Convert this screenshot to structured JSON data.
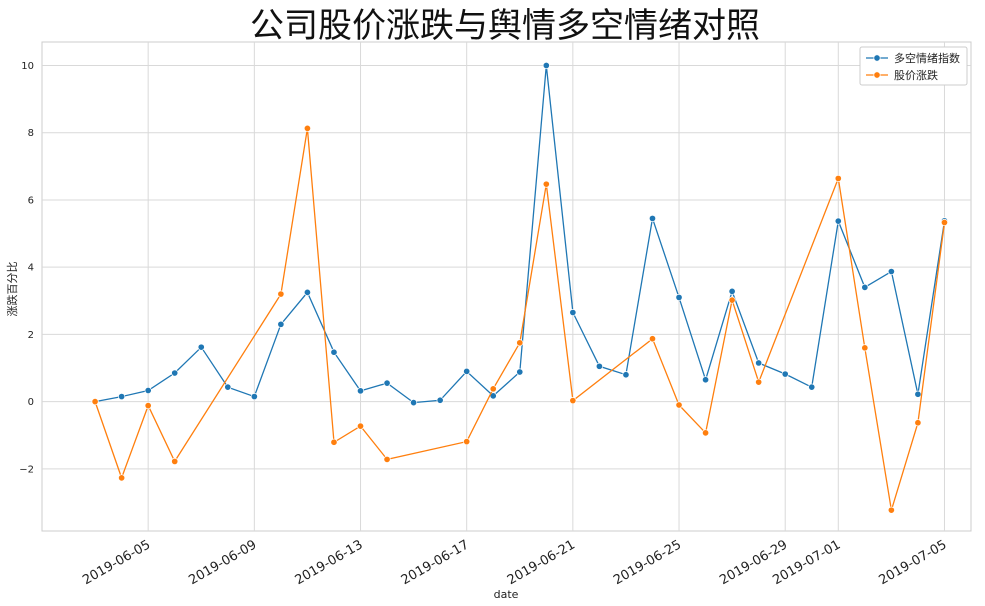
{
  "chart_data": {
    "type": "line",
    "title": "公司股价涨跌与舆情多空情绪对照",
    "xlabel": "date",
    "ylabel": "涨跌百分比",
    "ylim": [
      -3.85,
      10.7
    ],
    "xlim": [
      "2019-06-01",
      "2019-07-06"
    ],
    "yticks": [
      -2,
      0,
      2,
      4,
      6,
      8,
      10
    ],
    "xticks": [
      "2019-06-05",
      "2019-06-09",
      "2019-06-13",
      "2019-06-17",
      "2019-06-21",
      "2019-06-25",
      "2019-06-29",
      "2019-07-01",
      "2019-07-05"
    ],
    "grid": true,
    "legend_position": "top-right",
    "series": [
      {
        "name": "多空情绪指数",
        "color": "#1f77b4",
        "points": [
          {
            "x": "2019-06-03",
            "y": 0.0
          },
          {
            "x": "2019-06-04",
            "y": 0.15
          },
          {
            "x": "2019-06-05",
            "y": 0.33
          },
          {
            "x": "2019-06-06",
            "y": 0.85
          },
          {
            "x": "2019-06-07",
            "y": 1.62
          },
          {
            "x": "2019-06-08",
            "y": 0.43
          },
          {
            "x": "2019-06-09",
            "y": 0.15
          },
          {
            "x": "2019-06-10",
            "y": 2.3
          },
          {
            "x": "2019-06-11",
            "y": 3.25
          },
          {
            "x": "2019-06-12",
            "y": 1.47
          },
          {
            "x": "2019-06-13",
            "y": 0.32
          },
          {
            "x": "2019-06-14",
            "y": 0.55
          },
          {
            "x": "2019-06-15",
            "y": -0.03
          },
          {
            "x": "2019-06-16",
            "y": 0.04
          },
          {
            "x": "2019-06-17",
            "y": 0.9
          },
          {
            "x": "2019-06-18",
            "y": 0.17
          },
          {
            "x": "2019-06-19",
            "y": 0.88
          },
          {
            "x": "2019-06-20",
            "y": 10.0
          },
          {
            "x": "2019-06-21",
            "y": 2.65
          },
          {
            "x": "2019-06-22",
            "y": 1.05
          },
          {
            "x": "2019-06-23",
            "y": 0.8
          },
          {
            "x": "2019-06-24",
            "y": 5.45
          },
          {
            "x": "2019-06-25",
            "y": 3.1
          },
          {
            "x": "2019-06-26",
            "y": 0.65
          },
          {
            "x": "2019-06-27",
            "y": 3.28
          },
          {
            "x": "2019-06-28",
            "y": 1.15
          },
          {
            "x": "2019-06-29",
            "y": 0.82
          },
          {
            "x": "2019-06-30",
            "y": 0.43
          },
          {
            "x": "2019-07-01",
            "y": 5.37
          },
          {
            "x": "2019-07-02",
            "y": 3.4
          },
          {
            "x": "2019-07-03",
            "y": 3.87
          },
          {
            "x": "2019-07-04",
            "y": 0.22
          },
          {
            "x": "2019-07-05",
            "y": 5.38
          }
        ]
      },
      {
        "name": "股价涨跌",
        "color": "#ff7f0e",
        "points": [
          {
            "x": "2019-06-03",
            "y": 0.0
          },
          {
            "x": "2019-06-04",
            "y": -2.27
          },
          {
            "x": "2019-06-05",
            "y": -0.12
          },
          {
            "x": "2019-06-06",
            "y": -1.78
          },
          {
            "x": "2019-06-10",
            "y": 3.2
          },
          {
            "x": "2019-06-11",
            "y": 8.13
          },
          {
            "x": "2019-06-12",
            "y": -1.21
          },
          {
            "x": "2019-06-13",
            "y": -0.73
          },
          {
            "x": "2019-06-14",
            "y": -1.72
          },
          {
            "x": "2019-06-17",
            "y": -1.19
          },
          {
            "x": "2019-06-18",
            "y": 0.38
          },
          {
            "x": "2019-06-19",
            "y": 1.75
          },
          {
            "x": "2019-06-20",
            "y": 6.47
          },
          {
            "x": "2019-06-21",
            "y": 0.03
          },
          {
            "x": "2019-06-24",
            "y": 1.87
          },
          {
            "x": "2019-06-25",
            "y": -0.1
          },
          {
            "x": "2019-06-26",
            "y": -0.93
          },
          {
            "x": "2019-06-27",
            "y": 3.02
          },
          {
            "x": "2019-06-28",
            "y": 0.58
          },
          {
            "x": "2019-07-01",
            "y": 6.64
          },
          {
            "x": "2019-07-02",
            "y": 1.6
          },
          {
            "x": "2019-07-03",
            "y": -3.23
          },
          {
            "x": "2019-07-04",
            "y": -0.63
          },
          {
            "x": "2019-07-05",
            "y": 5.33
          }
        ]
      }
    ]
  }
}
